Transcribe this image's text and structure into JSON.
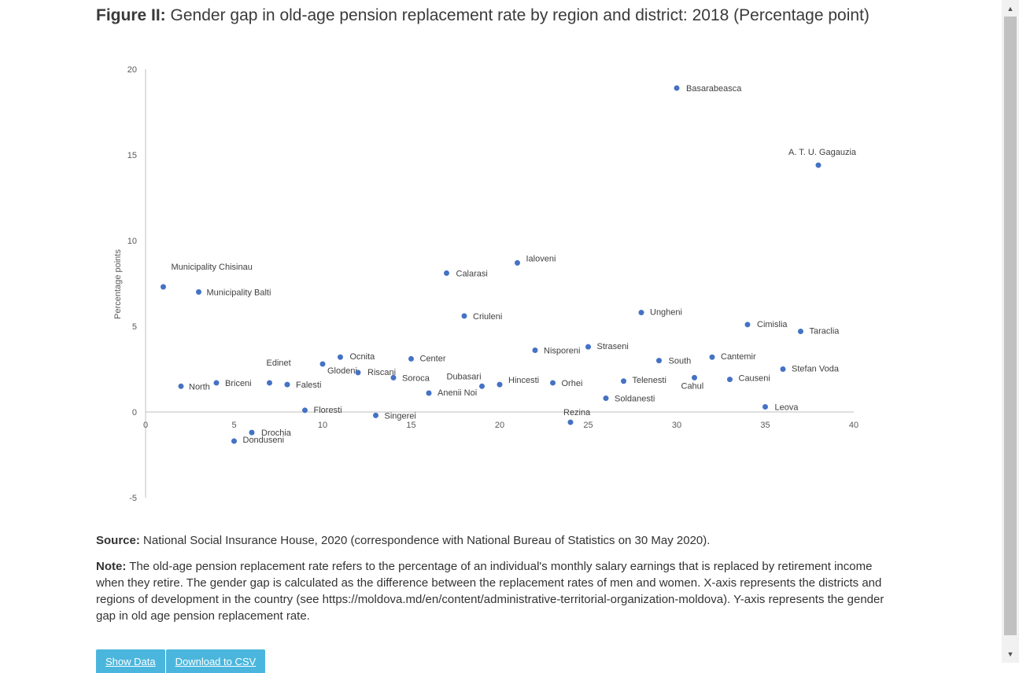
{
  "figure": {
    "label": "Figure II:",
    "title": "Gender gap in old-age pension replacement rate by region and district: 2018 (Percentage point)"
  },
  "chart_data": {
    "type": "scatter",
    "title": "Gender gap in old-age pension replacement rate by region and district: 2018 (Percentage point)",
    "xlabel": "",
    "ylabel": "Percentage points",
    "xlim": [
      0,
      40
    ],
    "ylim": [
      -5,
      20
    ],
    "xticks": [
      0,
      5,
      10,
      15,
      20,
      25,
      30,
      35,
      40
    ],
    "yticks": [
      -5,
      0,
      5,
      10,
      15,
      20
    ],
    "grid": false,
    "marker_color": "#4472c4",
    "points": [
      {
        "x": 1,
        "y": 7.3,
        "label": "Municipality Chisinau"
      },
      {
        "x": 2,
        "y": 1.5,
        "label": "North"
      },
      {
        "x": 3,
        "y": 7.0,
        "label": "Municipality Balti"
      },
      {
        "x": 4,
        "y": 1.7,
        "label": "Briceni"
      },
      {
        "x": 5,
        "y": -1.7,
        "label": "Donduseni"
      },
      {
        "x": 6,
        "y": -1.2,
        "label": "Drochia"
      },
      {
        "x": 7,
        "y": 1.7,
        "label": "Edinet"
      },
      {
        "x": 8,
        "y": 1.6,
        "label": "Falesti"
      },
      {
        "x": 9,
        "y": 0.1,
        "label": "Floresti"
      },
      {
        "x": 10,
        "y": 2.8,
        "label": "Glodeni"
      },
      {
        "x": 11,
        "y": 3.2,
        "label": "Ocnita"
      },
      {
        "x": 12,
        "y": 2.3,
        "label": "Riscani"
      },
      {
        "x": 13,
        "y": -0.2,
        "label": "Singerei"
      },
      {
        "x": 14,
        "y": 2.0,
        "label": "Soroca"
      },
      {
        "x": 15,
        "y": 3.1,
        "label": "Center"
      },
      {
        "x": 16,
        "y": 1.1,
        "label": "Anenii Noi"
      },
      {
        "x": 17,
        "y": 8.1,
        "label": "Calarasi"
      },
      {
        "x": 18,
        "y": 5.6,
        "label": "Criuleni"
      },
      {
        "x": 19,
        "y": 1.5,
        "label": "Dubasari"
      },
      {
        "x": 20,
        "y": 1.6,
        "label": "Hincesti"
      },
      {
        "x": 21,
        "y": 8.7,
        "label": "Ialoveni"
      },
      {
        "x": 22,
        "y": 3.6,
        "label": "Nisporeni"
      },
      {
        "x": 23,
        "y": 1.7,
        "label": "Orhei"
      },
      {
        "x": 24,
        "y": -0.6,
        "label": "Rezina"
      },
      {
        "x": 25,
        "y": 3.8,
        "label": "Straseni"
      },
      {
        "x": 26,
        "y": 0.8,
        "label": "Soldanesti"
      },
      {
        "x": 27,
        "y": 1.8,
        "label": "Telenesti"
      },
      {
        "x": 28,
        "y": 5.8,
        "label": "Ungheni"
      },
      {
        "x": 29,
        "y": 3.0,
        "label": "South"
      },
      {
        "x": 30,
        "y": 18.9,
        "label": "Basarabeasca"
      },
      {
        "x": 31,
        "y": 2.0,
        "label": "Cahul"
      },
      {
        "x": 32,
        "y": 3.2,
        "label": "Cantemir"
      },
      {
        "x": 33,
        "y": 1.9,
        "label": "Causeni"
      },
      {
        "x": 34,
        "y": 5.1,
        "label": "Cimislia"
      },
      {
        "x": 35,
        "y": 0.3,
        "label": "Leova"
      },
      {
        "x": 36,
        "y": 2.5,
        "label": "Stefan Voda"
      },
      {
        "x": 37,
        "y": 4.7,
        "label": "Taraclia"
      },
      {
        "x": 38,
        "y": 14.4,
        "label": "A. T. U. Gagauzia"
      }
    ]
  },
  "source": {
    "label": "Source:",
    "text": "National Social Insurance House, 2020 (correspondence with National Bureau of Statistics on 30 May 2020)."
  },
  "note": {
    "label": "Note:",
    "text": "The old-age pension replacement rate refers to the percentage of an individual's monthly salary earnings that is replaced by retirement income when they retire. The gender gap is calculated as the difference between the replacement rates of men and women. X-axis represents the districts and regions of development in the country (see https://moldova.md/en/content/administrative-territorial-organization-moldova). Y-axis represents the gender gap in old age pension replacement rate."
  },
  "buttons": {
    "show_data": "Show Data",
    "download_csv": "Download to CSV"
  },
  "scrollbar": {
    "up_arrow": "▲",
    "down_arrow": "▼"
  }
}
